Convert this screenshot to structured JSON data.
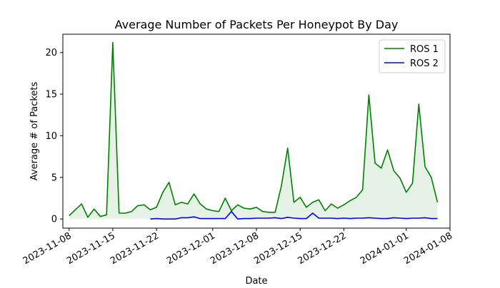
{
  "chart_data": {
    "type": "line",
    "title": "Average Number of Packets Per Honeypot By Day",
    "xlabel": "Date",
    "ylabel": "Average # of Packets",
    "x_type": "date",
    "xlim": [
      "2023-11-07",
      "2024-01-08"
    ],
    "ylim": [
      -1.1,
      22.2
    ],
    "x_ticks": [
      "2023-11-08",
      "2023-11-15",
      "2023-11-22",
      "2023-12-01",
      "2023-12-08",
      "2023-12-15",
      "2023-12-22",
      "2024-01-01",
      "2024-01-08"
    ],
    "y_ticks": [
      0,
      5,
      10,
      15,
      20
    ],
    "grid": false,
    "legend": "top-right",
    "series": [
      {
        "name": "ROS 1",
        "color": "#008000",
        "fill": true,
        "x": [
          "2023-11-08",
          "2023-11-10",
          "2023-11-11",
          "2023-11-12",
          "2023-11-13",
          "2023-11-14",
          "2023-11-15",
          "2023-11-16",
          "2023-11-17",
          "2023-11-18",
          "2023-11-19",
          "2023-11-20",
          "2023-11-21",
          "2023-11-22",
          "2023-11-23",
          "2023-11-24",
          "2023-11-25",
          "2023-11-26",
          "2023-11-27",
          "2023-11-28",
          "2023-11-29",
          "2023-11-30",
          "2023-12-01",
          "2023-12-02",
          "2023-12-03",
          "2023-12-04",
          "2023-12-05",
          "2023-12-06",
          "2023-12-07",
          "2023-12-08",
          "2023-12-09",
          "2023-12-10",
          "2023-12-11",
          "2023-12-12",
          "2023-12-13",
          "2023-12-14",
          "2023-12-15",
          "2023-12-16",
          "2023-12-17",
          "2023-12-18",
          "2023-12-19",
          "2023-12-20",
          "2023-12-21",
          "2023-12-22",
          "2023-12-23",
          "2023-12-24",
          "2023-12-25",
          "2023-12-26",
          "2023-12-27",
          "2023-12-28",
          "2023-12-29",
          "2023-12-30",
          "2023-12-31",
          "2024-01-01",
          "2024-01-02",
          "2024-01-03",
          "2024-01-04",
          "2024-01-05",
          "2024-01-06"
        ],
        "values": [
          0.4,
          1.8,
          0.2,
          1.2,
          0.3,
          0.5,
          21.2,
          0.7,
          0.7,
          0.9,
          1.6,
          1.7,
          1.1,
          1.4,
          3.2,
          4.4,
          1.7,
          2.0,
          1.8,
          3.0,
          1.8,
          1.2,
          1.0,
          0.9,
          2.5,
          1.0,
          1.7,
          1.3,
          1.2,
          1.4,
          0.9,
          0.8,
          0.8,
          4.0,
          8.5,
          2.0,
          2.6,
          1.4,
          2.0,
          2.3,
          1.0,
          1.8,
          1.3,
          1.7,
          2.2,
          2.6,
          3.5,
          14.9,
          6.7,
          6.1,
          8.3,
          5.8,
          4.9,
          3.2,
          4.3,
          13.8,
          6.3,
          5.0,
          2.0
        ]
      },
      {
        "name": "ROS 2",
        "color": "#0000ff",
        "fill": false,
        "x": [
          "2023-11-21",
          "2023-11-22",
          "2023-11-23",
          "2023-11-24",
          "2023-11-25",
          "2023-11-26",
          "2023-11-27",
          "2023-11-28",
          "2023-11-29",
          "2023-11-30",
          "2023-12-01",
          "2023-12-02",
          "2023-12-03",
          "2023-12-04",
          "2023-12-05",
          "2023-12-06",
          "2023-12-07",
          "2023-12-08",
          "2023-12-09",
          "2023-12-10",
          "2023-12-11",
          "2023-12-12",
          "2023-12-13",
          "2023-12-14",
          "2023-12-15",
          "2023-12-16",
          "2023-12-17",
          "2023-12-18",
          "2023-12-19",
          "2023-12-20",
          "2023-12-21",
          "2023-12-22",
          "2023-12-23",
          "2023-12-24",
          "2023-12-25",
          "2023-12-26",
          "2023-12-27",
          "2023-12-28",
          "2023-12-29",
          "2023-12-30",
          "2023-12-31",
          "2024-01-01",
          "2024-01-02",
          "2024-01-03",
          "2024-01-04",
          "2024-01-05",
          "2024-01-06"
        ],
        "values": [
          0.0,
          0.05,
          0.0,
          0.0,
          0.0,
          0.15,
          0.15,
          0.25,
          0.05,
          0.05,
          0.05,
          0.05,
          0.05,
          0.9,
          0.0,
          0.05,
          0.05,
          0.1,
          0.1,
          0.1,
          0.15,
          0.05,
          0.2,
          0.1,
          0.05,
          0.05,
          0.7,
          0.1,
          0.1,
          0.1,
          0.05,
          0.1,
          0.05,
          0.1,
          0.1,
          0.15,
          0.1,
          0.05,
          0.05,
          0.15,
          0.1,
          0.05,
          0.1,
          0.1,
          0.15,
          0.05,
          0.05
        ]
      }
    ]
  }
}
